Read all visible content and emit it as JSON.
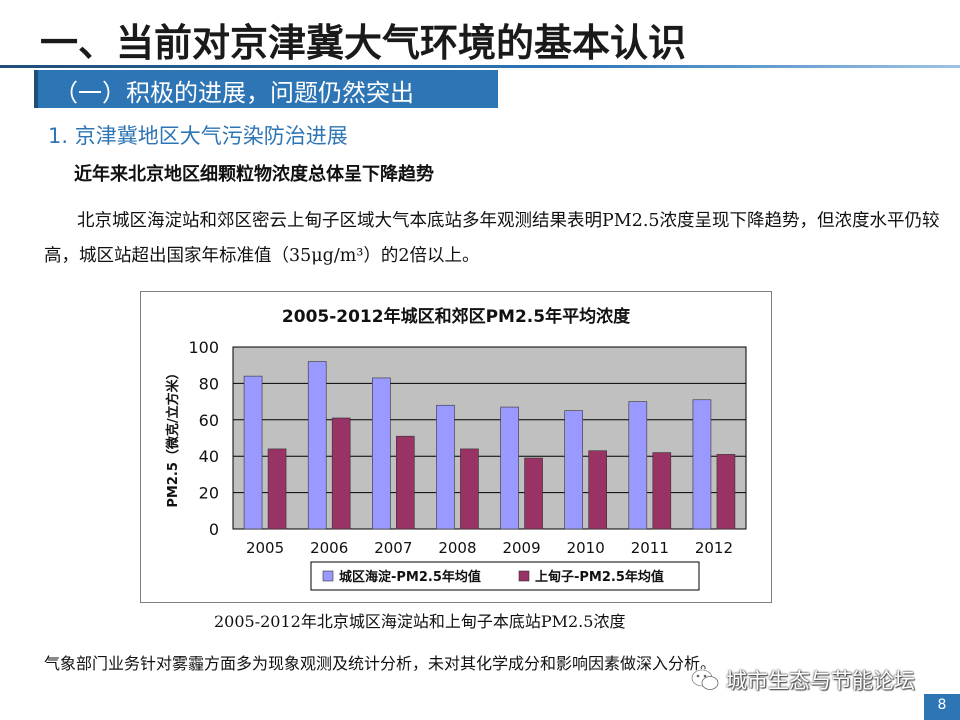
{
  "title": "一、当前对京津冀大气环境的基本认识",
  "section": "（一）积极的进展，问题仍然突出",
  "subsection": "1. 京津冀地区大气污染防治进展",
  "lead": "近年来北京地区细颗粒物浓度总体呈下降趋势",
  "body": "北京城区海淀站和郊区密云上甸子区域大气本底站多年观测结果表明PM2.5浓度呈现下降趋势，但浓度水平仍较高，城区站超出国家年标准值（35μg/m³）的2倍以上。",
  "caption": "2005-2012年北京城区海淀站和上甸子本底站PM2.5浓度",
  "footnote": "气象部门业务针对雾霾方面多为现象观测及统计分析，未对其化学成分和影响因素做深入分析。",
  "watermark": "城市生态与节能论坛",
  "page_number": "8",
  "colors": {
    "accent": "#2e75b6",
    "series_1": "#9999ff",
    "series_2": "#993366",
    "plot_background": "#c0c0c0"
  },
  "chart_data": {
    "type": "bar",
    "title": "2005-2012年城区和郊区PM2.5年平均浓度",
    "ylabel": "PM2.5（微克/立方米）",
    "xlabel": "",
    "categories": [
      "2005",
      "2006",
      "2007",
      "2008",
      "2009",
      "2010",
      "2011",
      "2012"
    ],
    "series": [
      {
        "name": "城区海淀-PM2.5年均值",
        "values": [
          84,
          92,
          83,
          68,
          67,
          65,
          70,
          71
        ]
      },
      {
        "name": "上甸子-PM2.5年均值",
        "values": [
          44,
          61,
          51,
          44,
          39,
          43,
          42,
          41
        ]
      }
    ],
    "yticks": [
      "0",
      "20",
      "40",
      "60",
      "80",
      "100"
    ],
    "ylim": [
      0,
      100
    ],
    "grid": true,
    "legend": "bottom"
  }
}
